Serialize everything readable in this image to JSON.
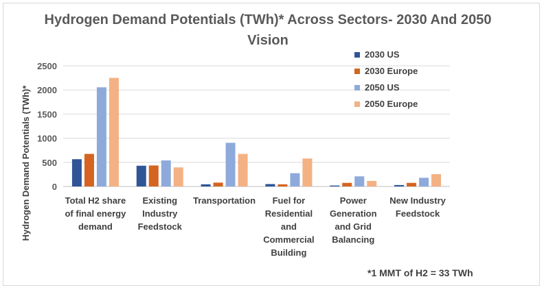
{
  "chart_data": {
    "type": "bar",
    "title": "Hydrogen Demand Potentials (TWh)* Across Sectors- 2030 And 2050 Vision",
    "xlabel": "",
    "ylabel": "Hydrogen Demand Potentials (TWh)*",
    "ylim": [
      0,
      2500
    ],
    "yticks": [
      0,
      500,
      1000,
      1500,
      2000,
      2500
    ],
    "grid": true,
    "legend_position": "top-right",
    "categories": [
      [
        "Total H2 share",
        "of final energy",
        "demand"
      ],
      [
        "Existing",
        "Industry",
        "Feedstock"
      ],
      [
        "Transportation"
      ],
      [
        "Fuel for",
        "Residential",
        "and",
        "Commercial",
        "Building"
      ],
      [
        "Power",
        "Generation",
        "and Grid",
        "Balancing"
      ],
      [
        "New Industry",
        "Feedstock"
      ]
    ],
    "series": [
      {
        "name": "2030 US",
        "color": "#2f5597",
        "values": [
          565,
          430,
          45,
          50,
          20,
          30
        ]
      },
      {
        "name": "2030 Europe",
        "color": "#d46420",
        "values": [
          675,
          435,
          80,
          45,
          75,
          75
        ]
      },
      {
        "name": "2050 US",
        "color": "#8eaadb",
        "values": [
          2055,
          540,
          905,
          275,
          210,
          180
        ]
      },
      {
        "name": "2050 Europe",
        "color": "#f4b183",
        "values": [
          2250,
          395,
          675,
          580,
          115,
          255
        ]
      }
    ],
    "footnote": "*1 MMT of H2 = 33 TWh"
  }
}
